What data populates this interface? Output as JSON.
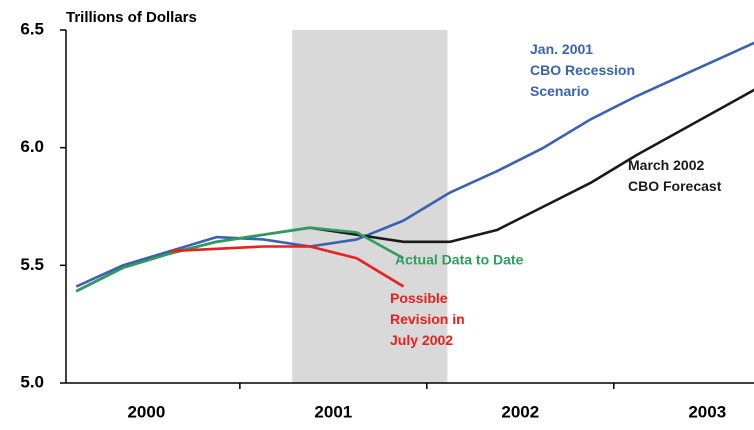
{
  "chart_data": {
    "type": "line",
    "title": "Trillions of Dollars",
    "x": [
      2000.125,
      2000.375,
      2000.625,
      2000.875,
      2001.125,
      2001.375,
      2001.625,
      2001.875,
      2002.125,
      2002.375,
      2002.625,
      2002.875,
      2003.125,
      2003.375,
      2003.625,
      2003.875
    ],
    "xlim": [
      2000.07,
      2003.75
    ],
    "xticks": [
      {
        "value": 2000.5,
        "label": "2000"
      },
      {
        "value": 2001.5,
        "label": "2001"
      },
      {
        "value": 2002.5,
        "label": "2002"
      },
      {
        "value": 2003.5,
        "label": "2003"
      }
    ],
    "xtick_marks": [
      2001,
      2002,
      2003
    ],
    "ylim": [
      5.0,
      6.5
    ],
    "yticks": [
      {
        "value": 5.0,
        "label": "5.0"
      },
      5.5,
      {
        "value": 6.0,
        "label": "6.0"
      },
      6.5
    ],
    "shaded_span": [
      2001.28,
      2002.11
    ],
    "shade_color": "#d9d9d9",
    "grid": false,
    "series": [
      {
        "name": "Jan. 2001\nCBO Recession\nScenario",
        "color": "#3a62b0",
        "values": [
          5.41,
          5.5,
          5.56,
          5.62,
          5.61,
          5.58,
          5.61,
          5.69,
          5.81,
          5.9,
          6.0,
          6.12,
          6.22,
          6.31,
          6.4,
          6.49
        ]
      },
      {
        "name": "March 2002\nCBO Forecast",
        "color": "#1a1a1a",
        "values": [
          5.39,
          5.49,
          5.55,
          5.6,
          5.63,
          5.66,
          5.63,
          5.6,
          5.6,
          5.65,
          5.75,
          5.85,
          5.97,
          6.08,
          6.19,
          6.3
        ]
      },
      {
        "name": "Actual Data to Date",
        "color": "#2e9e5e",
        "values": [
          5.39,
          5.49,
          5.55,
          5.6,
          5.63,
          5.66,
          5.64,
          5.53,
          null,
          null,
          null,
          null,
          null,
          null,
          null,
          null
        ]
      },
      {
        "name": "Possible\nRevision in\nJuly 2002",
        "color": "#e8201e",
        "values": [
          null,
          null,
          5.56,
          5.57,
          5.58,
          5.58,
          5.53,
          5.41,
          null,
          null,
          null,
          null,
          null,
          null,
          null,
          null
        ]
      }
    ]
  }
}
